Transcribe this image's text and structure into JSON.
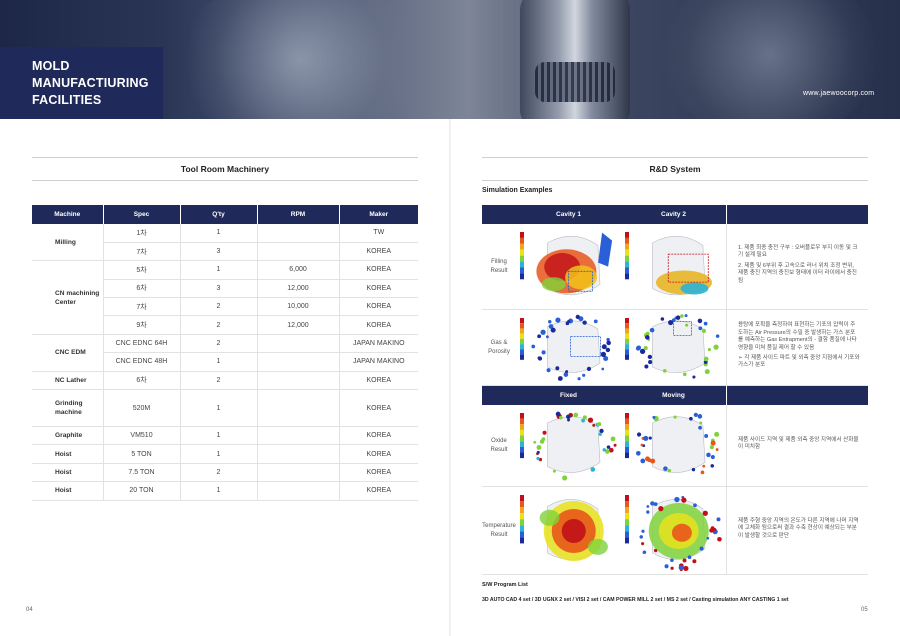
{
  "header": {
    "title_lines": [
      "MOLD",
      "MANUFACTIURING",
      "FACILITIES"
    ],
    "url": "www.jaewoocorp.com"
  },
  "left": {
    "section_title": "Tool Room Machinery",
    "table": {
      "columns": [
        "Machine",
        "Spec",
        "Q'ty",
        "RPM",
        "Maker"
      ],
      "rows": [
        {
          "machine": "Milling",
          "rowspan": 2,
          "spec": "1차",
          "qty": "1",
          "rpm": "",
          "maker": "TW"
        },
        {
          "spec": "7차",
          "qty": "3",
          "rpm": "",
          "maker": "KOREA"
        },
        {
          "machine": "CN machining Center",
          "rowspan": 4,
          "spec": "5차",
          "qty": "1",
          "rpm": "6,000",
          "maker": "KOREA"
        },
        {
          "spec": "6차",
          "qty": "3",
          "rpm": "12,000",
          "maker": "KOREA"
        },
        {
          "spec": "7차",
          "qty": "2",
          "rpm": "10,000",
          "maker": "KOREA"
        },
        {
          "spec": "9차",
          "qty": "2",
          "rpm": "12,000",
          "maker": "KOREA"
        },
        {
          "machine": "CNC EDM",
          "rowspan": 2,
          "spec": "CNC EDNC 64H",
          "qty": "2",
          "rpm": "",
          "maker": "JAPAN MAKINO"
        },
        {
          "spec": "CNC EDNC 48H",
          "qty": "1",
          "rpm": "",
          "maker": "JAPAN MAKINO"
        },
        {
          "machine": "NC Lather",
          "rowspan": 1,
          "spec": "6차",
          "qty": "2",
          "rpm": "",
          "maker": "KOREA"
        },
        {
          "machine": "Grinding machine",
          "rowspan": 1,
          "spec": "520M",
          "qty": "1",
          "rpm": "",
          "maker": "KOREA",
          "tall": true
        },
        {
          "machine": "Graphite",
          "rowspan": 1,
          "spec": "VM510",
          "qty": "1",
          "rpm": "",
          "maker": "KOREA"
        },
        {
          "machine": "Hoist",
          "rowspan": 1,
          "spec": "5 TON",
          "qty": "1",
          "rpm": "",
          "maker": "KOREA"
        },
        {
          "machine": "Hoist",
          "rowspan": 1,
          "spec": "7.5 TON",
          "qty": "2",
          "rpm": "",
          "maker": "KOREA"
        },
        {
          "machine": "Hoist",
          "rowspan": 1,
          "spec": "20 TON",
          "qty": "1",
          "rpm": "",
          "maker": "KOREA"
        }
      ]
    },
    "page_number": "04"
  },
  "right": {
    "section_title": "R&D System",
    "subtitle": "Simulation Examples",
    "head1": {
      "col1": "Cavity 1",
      "col2": "Cavity 2"
    },
    "head2": {
      "col1": "Fixed",
      "col2": "Moving"
    },
    "rows": [
      {
        "label": "Filling Result",
        "desc": [
          "1. 제품 최종 충전 구부 : 오버플로우 부지 이동 및 크기 설계 필요",
          "2. 제품 및 6부위 후 고속으로 러너 위치 조정 변위, 제품 충진 지역의 충진보 형태에 이터 라이에서 충진 됨"
        ]
      },
      {
        "label": "Gas & Porosity",
        "desc": [
          "용탕에 포획을 측정하여 표현하는 기포의 압력이 주도하는 Air Pressure의 수밀 중 발생하는 가스 분포를 예측하는 Gas Entrapment의 - 결함 품질에 나타 영향을 미쳐 품질 제어 할 수 있음",
          "➢ 각 제품 사이드 파트 및 외측 중앙 지점에서 기포와 가스가 분포"
        ]
      },
      {
        "label": "Oxide Result",
        "desc": [
          "제품 사이드 지역 및 제품 외측 중앙 지역에서 산화물이 미치함"
        ]
      },
      {
        "label": "Temperature Result",
        "desc": [
          "제품 주형 중앙 지역의 온도가 다른 지역에 나머 지역에 고체화 됨으로써 결과 수축 현상이 예상되는 부분이 발생할 것으로 판단"
        ]
      }
    ],
    "sw_title": "S/W Program List",
    "sw_line": "3D AUTO CAD 4 set  /  3D UGNX 2 set / VISI 2 set  /  CAM POWER MILL 2 set  /  MS 2 set  /  Casting simulation ANY CASTING 1 set",
    "page_number": "05"
  }
}
